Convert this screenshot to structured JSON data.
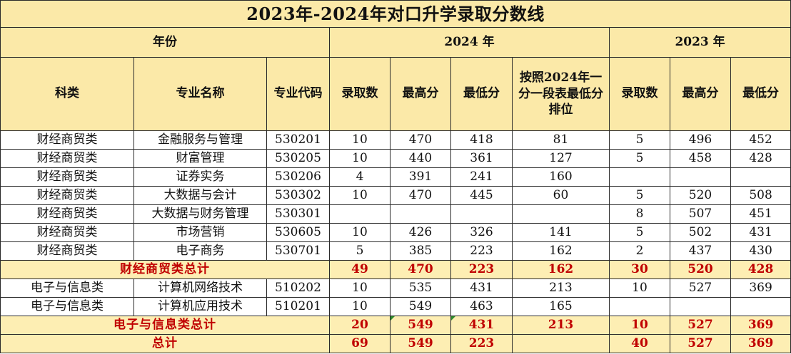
{
  "title": "2023年-2024年对口升学录取分数线",
  "header": {
    "year_label": "年份",
    "year_2024": "2024 年",
    "year_2023": "2023 年",
    "columns": {
      "category": "科类",
      "major_name": "专业名称",
      "major_code": "专业代码",
      "admitted_2024": "录取数",
      "max_2024": "最高分",
      "min_2024": "最低分",
      "rank_2024": "按照2024年一分一段表最低分排位",
      "admitted_2023": "录取数",
      "max_2023": "最高分",
      "min_2023": "最低分"
    }
  },
  "rows": [
    {
      "category": "财经商贸类",
      "major": "金融服务与管理",
      "code": "530201",
      "a24": "10",
      "max24": "470",
      "min24": "418",
      "rank24": "81",
      "a23": "5",
      "max23": "496",
      "min23": "452"
    },
    {
      "category": "财经商贸类",
      "major": "财富管理",
      "code": "530205",
      "a24": "10",
      "max24": "440",
      "min24": "361",
      "rank24": "127",
      "a23": "5",
      "max23": "458",
      "min23": "428"
    },
    {
      "category": "财经商贸类",
      "major": "证券实务",
      "code": "530206",
      "a24": "4",
      "max24": "391",
      "min24": "241",
      "rank24": "160",
      "a23": "",
      "max23": "",
      "min23": ""
    },
    {
      "category": "财经商贸类",
      "major": "大数据与会计",
      "code": "530302",
      "a24": "10",
      "max24": "470",
      "min24": "445",
      "rank24": "60",
      "a23": "5",
      "max23": "520",
      "min23": "508"
    },
    {
      "category": "财经商贸类",
      "major": "大数据与财务管理",
      "code": "530301",
      "a24": "",
      "max24": "",
      "min24": "",
      "rank24": "",
      "a23": "8",
      "max23": "507",
      "min23": "451"
    },
    {
      "category": "财经商贸类",
      "major": "市场营销",
      "code": "530605",
      "a24": "10",
      "max24": "426",
      "min24": "326",
      "rank24": "141",
      "a23": "5",
      "max23": "502",
      "min23": "431"
    },
    {
      "category": "财经商贸类",
      "major": "电子商务",
      "code": "530701",
      "a24": "5",
      "max24": "385",
      "min24": "223",
      "rank24": "162",
      "a23": "2",
      "max23": "437",
      "min23": "430"
    }
  ],
  "subtotal_finance": {
    "label": "财经商贸类总计",
    "a24": "49",
    "max24": "470",
    "min24": "223",
    "rank24": "162",
    "a23": "30",
    "max23": "520",
    "min23": "428"
  },
  "rows2": [
    {
      "category": "电子与信息类",
      "major": "计算机网络技术",
      "code": "510202",
      "a24": "10",
      "max24": "535",
      "min24": "431",
      "rank24": "213",
      "a23": "10",
      "max23": "527",
      "min23": "369"
    },
    {
      "category": "电子与信息类",
      "major": "计算机应用技术",
      "code": "510201",
      "a24": "10",
      "max24": "549",
      "min24": "463",
      "rank24": "165",
      "a23": "",
      "max23": "",
      "min23": ""
    }
  ],
  "subtotal_electronic": {
    "label": "电子与信息类总计",
    "a24": "20",
    "max24": "549",
    "min24": "431",
    "rank24": "213",
    "a23": "10",
    "max23": "527",
    "min23": "369"
  },
  "total": {
    "label": "总计",
    "a24": "69",
    "max24": "549",
    "min24": "223",
    "rank24": "",
    "a23": "40",
    "max23": "527",
    "min23": "369"
  },
  "colors": {
    "header_fill": "#fbe9a8",
    "subtotal_fill": "#fdeeb3",
    "subtotal_text": "#c00000",
    "error_marker": "#2e8b2e"
  }
}
